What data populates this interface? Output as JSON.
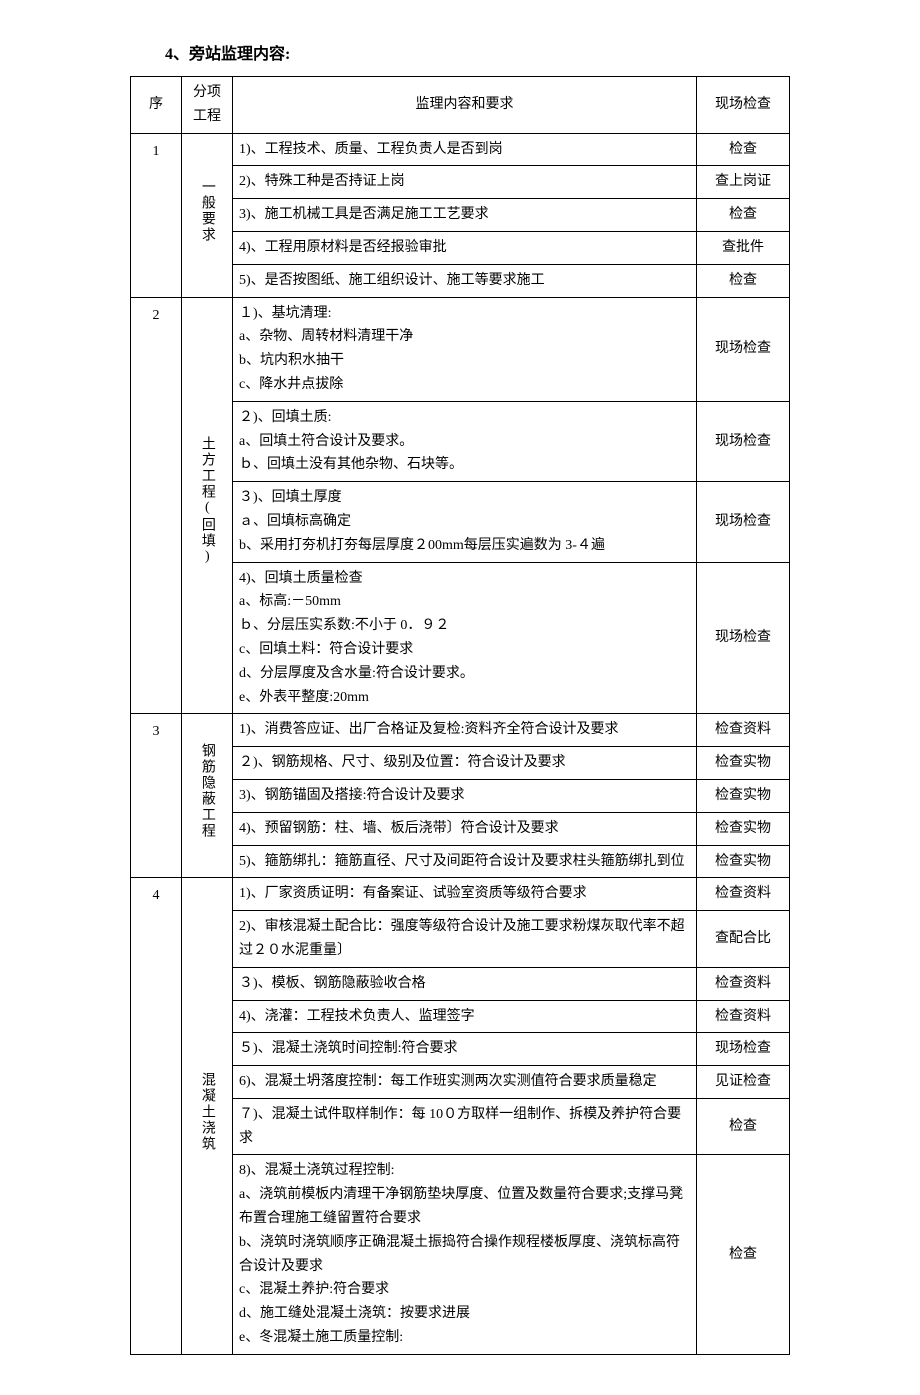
{
  "title": "4、旁站监理内容:",
  "header": {
    "seq": "序",
    "category": "分项\n工程",
    "content": "监理内容和要求",
    "check": "现场检查"
  },
  "sections": [
    {
      "seq": "1",
      "category": "一般要求",
      "rows": [
        {
          "content": "1)、工程技术、质量、工程负责人是否到岗",
          "check": "检查"
        },
        {
          "content": "2)、特殊工种是否持证上岗",
          "check": "查上岗证"
        },
        {
          "content": "3)、施工机械工具是否满足施工工艺要求",
          "check": "检查"
        },
        {
          "content": "4)、工程用原材料是否经报验审批",
          "check": "查批件"
        },
        {
          "content": "5)、是否按图纸、施工组织设计、施工等要求施工",
          "check": "检查"
        }
      ]
    },
    {
      "seq": "2",
      "category": "土方工程(回填)",
      "rows": [
        {
          "content": "１)、基坑清理:\na、杂物、周转材料清理干净\nb、坑内积水抽干\nc、降水井点拔除",
          "check": "现场检查"
        },
        {
          "content": "２)、回填土质:\na、回填土符合设计及要求。\nｂ、回填土没有其他杂物、石块等。",
          "check": "现场检查"
        },
        {
          "content": "３)、回填土厚度\nａ、回填标高确定\nb、采用打夯机打夯每层厚度２00mm每层压实遍数为 3-４遍",
          "check": "现场检查"
        },
        {
          "content": "4)、回填土质量检查\na、标高:－50mm\nｂ、分层压实系数:不小于 0．９２\nc、回填土料：符合设计要求\nd、分层厚度及含水量:符合设计要求。\ne、外表平整度:20mm",
          "check": "现场检查"
        }
      ]
    },
    {
      "seq": "3",
      "category": "钢筋隐蔽工程",
      "rows": [
        {
          "content": "1)、消费答应证、出厂合格证及复检:资料齐全符合设计及要求",
          "check": "检查资料"
        },
        {
          "content": "２)、钢筋规格、尺寸、级别及位置：符合设计及要求",
          "check": "检查实物"
        },
        {
          "content": "3)、钢筋锚固及搭接:符合设计及要求",
          "check": "检查实物"
        },
        {
          "content": "4)、预留钢筋：柱、墙、板后浇带〕符合设计及要求",
          "check": "检查实物"
        },
        {
          "content": "5)、箍筋绑扎：箍筋直径、尺寸及间距符合设计及要求柱头箍筋绑扎到位",
          "check": "检查实物"
        }
      ]
    },
    {
      "seq": "4",
      "category": "混凝土浇筑",
      "rows": [
        {
          "content": "1)、厂家资质证明：有备案证、试验室资质等级符合要求",
          "check": "检查资料"
        },
        {
          "content": "2)、审核混凝土配合比：强度等级符合设计及施工要求粉煤灰取代率不超过２０水泥重量〕",
          "check": "查配合比"
        },
        {
          "content": "３)、模板、钢筋隐蔽验收合格",
          "check": "检查资料"
        },
        {
          "content": "4)、浇灌：工程技术负责人、监理签字",
          "check": "检查资料"
        },
        {
          "content": "５)、混凝土浇筑时间控制:符合要求",
          "check": "现场检查"
        },
        {
          "content": "6)、混凝土坍落度控制：每工作班实测两次实测值符合要求质量稳定",
          "check": "见证检查"
        },
        {
          "content": "７)、混凝土试件取样制作：每 10０方取样一组制作、拆模及养护符合要求",
          "check": "检查"
        },
        {
          "content": "8)、混凝土浇筑过程控制:\na、浇筑前模板内清理干净钢筋垫块厚度、位置及数量符合要求;支撑马凳布置合理施工缝留置符合要求\nb、浇筑时浇筑顺序正确混凝土振捣符合操作规程楼板厚度、浇筑标高符合设计及要求\nc、混凝土养护:符合要求\nd、施工缝处混凝土浇筑：按要求进展\ne、冬混凝土施工质量控制:",
          "check": "检查"
        }
      ]
    }
  ]
}
